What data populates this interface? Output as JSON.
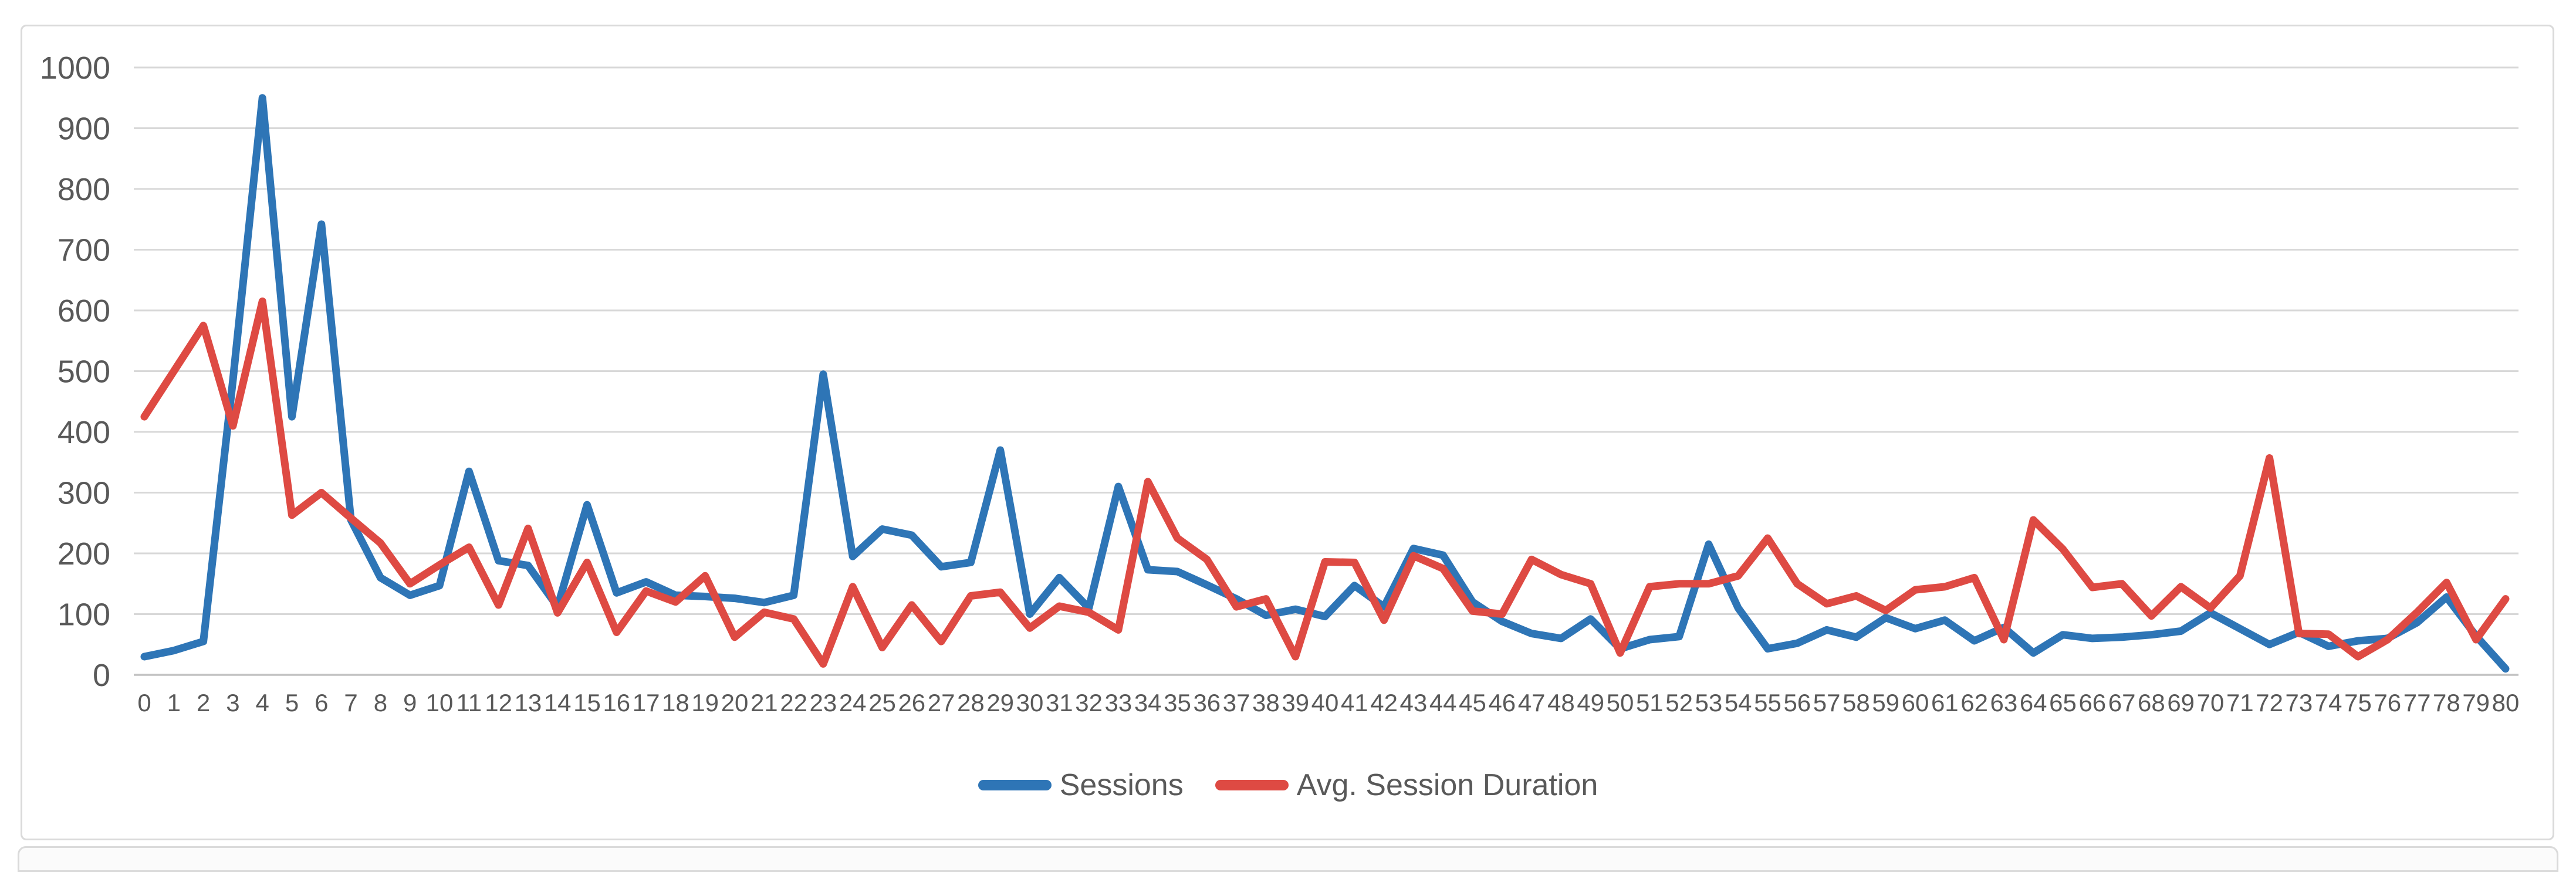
{
  "colors": {
    "sessions_blue": "#2E75B6",
    "duration_red": "#DE4A43",
    "label_text": "#595959",
    "gridline": "#D8D8D8",
    "axis_line": "#C2C2C2",
    "frame_border": "#DADADA",
    "background": "#FFFFFF"
  },
  "chart_data": {
    "type": "line",
    "title": "",
    "xlabel": "",
    "ylabel": "",
    "ylim": [
      0,
      1000
    ],
    "yticks": [
      0,
      100,
      200,
      300,
      400,
      500,
      600,
      700,
      800,
      900,
      1000
    ],
    "grid": true,
    "legend_position": "bottom-center",
    "categories": [
      "0",
      "1",
      "2",
      "3",
      "4",
      "5",
      "6",
      "7",
      "8",
      "9",
      "10",
      "11",
      "12",
      "13",
      "14",
      "15",
      "16",
      "17",
      "18",
      "19",
      "20",
      "21",
      "22",
      "23",
      "24",
      "25",
      "26",
      "27",
      "28",
      "29",
      "30",
      "31",
      "32",
      "33",
      "34",
      "35",
      "36",
      "37",
      "38",
      "39",
      "40",
      "41",
      "42",
      "43",
      "44",
      "45",
      "46",
      "47",
      "48",
      "49",
      "50",
      "51",
      "52",
      "53",
      "54",
      "55",
      "56",
      "57",
      "58",
      "59",
      "60",
      "61",
      "62",
      "63",
      "64",
      "65",
      "66",
      "67",
      "68",
      "69",
      "70",
      "71",
      "72",
      "73",
      "74",
      "75",
      "76",
      "77",
      "78",
      "79",
      "80"
    ],
    "series": [
      {
        "name": "Sessions",
        "color": "#2E75B6",
        "values": [
          30,
          40,
          55,
          485,
          950,
          425,
          742,
          255,
          160,
          131,
          147,
          335,
          188,
          180,
          112,
          280,
          135,
          153,
          131,
          129,
          126,
          119,
          131,
          495,
          195,
          240,
          230,
          178,
          185,
          370,
          100,
          160,
          110,
          310,
          173,
          170,
          148,
          125,
          98,
          108,
          96,
          147,
          112,
          208,
          197,
          120,
          88,
          68,
          60,
          92,
          43,
          58,
          63,
          215,
          110,
          43,
          52,
          74,
          62,
          94,
          76,
          90,
          56,
          78,
          36,
          66,
          60,
          62,
          66,
          72,
          102,
          76,
          50,
          70,
          47,
          56,
          60,
          86,
          128,
          64,
          10
        ]
      },
      {
        "name": "Avg. Session Duration",
        "color": "#DE4A43",
        "values": [
          425,
          500,
          575,
          410,
          615,
          263,
          300,
          258,
          217,
          150,
          181,
          210,
          115,
          241,
          102,
          185,
          70,
          138,
          120,
          163,
          62,
          103,
          92,
          18,
          145,
          45,
          115,
          55,
          130,
          136,
          77,
          113,
          103,
          74,
          318,
          225,
          190,
          112,
          125,
          30,
          186,
          185,
          90,
          196,
          175,
          105,
          100,
          190,
          165,
          150,
          36,
          145,
          150,
          150,
          163,
          225,
          150,
          117,
          130,
          106,
          140,
          145,
          160,
          58,
          255,
          207,
          144,
          150,
          97,
          145,
          110,
          163,
          357,
          68,
          67,
          30,
          58,
          103,
          152,
          58,
          125
        ]
      }
    ]
  }
}
